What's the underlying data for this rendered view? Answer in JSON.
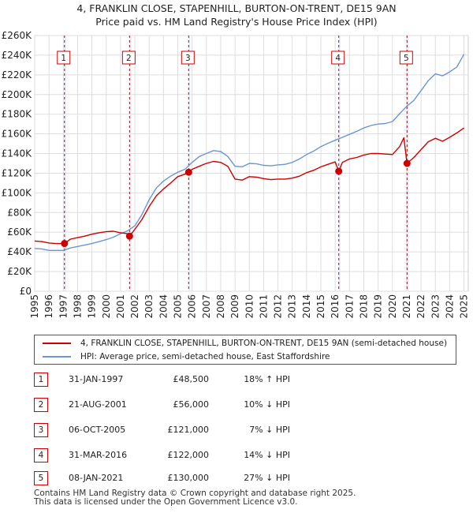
{
  "title_line1": "4, FRANKLIN CLOSE, STAPENHILL, BURTON-ON-TRENT, DE15 9AN",
  "title_line2": "Price paid vs. HM Land Registry's House Price Index (HPI)",
  "chart_data": {
    "type": "line",
    "xlim": [
      1995,
      2025.3
    ],
    "ylim": [
      0,
      260000
    ],
    "y_ticks": [
      0,
      20000,
      40000,
      60000,
      80000,
      100000,
      120000,
      140000,
      160000,
      180000,
      200000,
      220000,
      240000,
      260000
    ],
    "y_tick_labels": [
      "£0",
      "£20K",
      "£40K",
      "£60K",
      "£80K",
      "£100K",
      "£120K",
      "£140K",
      "£160K",
      "£180K",
      "£200K",
      "£220K",
      "£240K",
      "£260K"
    ],
    "x_ticks": [
      1995,
      1996,
      1997,
      1998,
      1999,
      2000,
      2001,
      2002,
      2003,
      2004,
      2005,
      2006,
      2007,
      2008,
      2009,
      2010,
      2011,
      2012,
      2013,
      2014,
      2015,
      2016,
      2017,
      2018,
      2019,
      2020,
      2021,
      2022,
      2023,
      2024,
      2025
    ],
    "x_tick_labels": [
      "1995",
      "1996",
      "1997",
      "1998",
      "1999",
      "2000",
      "2001",
      "2002",
      "2003",
      "2004",
      "2005",
      "2006",
      "2007",
      "2008",
      "2009",
      "2010",
      "2011",
      "2012",
      "2013",
      "2014",
      "2015",
      "2016",
      "2017",
      "2018",
      "2019",
      "2020",
      "2021",
      "2022",
      "2023",
      "2024",
      "2025"
    ],
    "grid": true,
    "series": [
      {
        "name": "4, FRANKLIN CLOSE, STAPENHILL, BURTON-ON-TRENT, DE15 9AN (semi-detached house)",
        "color": "#cc0000",
        "x": [
          1995.0,
          1995.5,
          1996.0,
          1996.5,
          1997.08,
          1997.5,
          1998.0,
          1998.5,
          1999.0,
          1999.5,
          2000.0,
          2000.5,
          2001.0,
          2001.5,
          2001.63,
          2002.0,
          2002.5,
          2003.0,
          2003.5,
          2004.0,
          2004.5,
          2005.0,
          2005.5,
          2005.76,
          2006.0,
          2006.5,
          2007.0,
          2007.5,
          2008.0,
          2008.5,
          2009.0,
          2009.5,
          2010.0,
          2010.5,
          2011.0,
          2011.5,
          2012.0,
          2012.5,
          2013.0,
          2013.5,
          2014.0,
          2014.5,
          2015.0,
          2015.5,
          2016.0,
          2016.25,
          2016.5,
          2017.0,
          2017.5,
          2018.0,
          2018.5,
          2019.0,
          2019.5,
          2020.0,
          2020.5,
          2020.8,
          2021.02,
          2021.5,
          2022.0,
          2022.5,
          2023.0,
          2023.5,
          2024.0,
          2024.5,
          2025.0
        ],
        "y": [
          51000,
          50500,
          49000,
          48500,
          48500,
          53000,
          54500,
          56000,
          58000,
          59500,
          60500,
          61000,
          59500,
          58500,
          56000,
          63000,
          73000,
          86000,
          97000,
          104000,
          110000,
          116500,
          119000,
          121000,
          124000,
          127000,
          130000,
          132000,
          131000,
          127000,
          114000,
          113000,
          116500,
          116000,
          114500,
          113500,
          114000,
          114000,
          115000,
          117000,
          120500,
          123000,
          126500,
          129000,
          131500,
          122000,
          131000,
          134500,
          136000,
          138500,
          140000,
          140000,
          139500,
          139000,
          147000,
          156000,
          130000,
          136000,
          144000,
          152000,
          155500,
          152500,
          156500,
          161000,
          166000
        ]
      },
      {
        "name": "HPI: Average price, semi-detached house, East Staffordshire",
        "color": "#6a96d4",
        "x": [
          1995.0,
          1995.5,
          1996.0,
          1996.5,
          1997.0,
          1997.5,
          1998.0,
          1998.5,
          1999.0,
          1999.5,
          2000.0,
          2000.5,
          2001.0,
          2001.5,
          2002.0,
          2002.5,
          2003.0,
          2003.5,
          2004.0,
          2004.5,
          2005.0,
          2005.5,
          2006.0,
          2006.5,
          2007.0,
          2007.5,
          2008.0,
          2008.5,
          2009.0,
          2009.5,
          2010.0,
          2010.5,
          2011.0,
          2011.5,
          2012.0,
          2012.5,
          2013.0,
          2013.5,
          2014.0,
          2014.5,
          2015.0,
          2015.5,
          2016.0,
          2016.5,
          2017.0,
          2017.5,
          2018.0,
          2018.5,
          2019.0,
          2019.5,
          2020.0,
          2020.5,
          2021.0,
          2021.5,
          2022.0,
          2022.5,
          2023.0,
          2023.5,
          2024.0,
          2024.5,
          2025.0
        ],
        "y": [
          43500,
          43000,
          41500,
          41500,
          41500,
          44000,
          45500,
          47000,
          48500,
          50500,
          52500,
          55000,
          58500,
          61500,
          66500,
          78000,
          93000,
          105000,
          112000,
          117000,
          121000,
          124000,
          131000,
          137000,
          140000,
          143000,
          142000,
          137000,
          127000,
          126500,
          130000,
          129500,
          128000,
          127500,
          128500,
          129000,
          131000,
          134500,
          139000,
          142500,
          147000,
          150500,
          153500,
          156500,
          159500,
          162500,
          166000,
          168500,
          170000,
          170500,
          172500,
          180500,
          188000,
          194000,
          204000,
          214000,
          221000,
          219000,
          223000,
          228000,
          241000
        ]
      }
    ],
    "sales": [
      {
        "id": "1",
        "x": 1997.08,
        "y": 48500
      },
      {
        "id": "2",
        "x": 2001.63,
        "y": 56000
      },
      {
        "id": "3",
        "x": 2005.76,
        "y": 121000
      },
      {
        "id": "4",
        "x": 2016.25,
        "y": 122000
      },
      {
        "id": "5",
        "x": 2021.02,
        "y": 130000
      }
    ]
  },
  "legend": {
    "property_label": "4, FRANKLIN CLOSE, STAPENHILL, BURTON-ON-TRENT, DE15 9AN (semi-detached house)",
    "hpi_label": "HPI: Average price, semi-detached house, East Staffordshire",
    "property_color": "#cc0000",
    "hpi_color": "#6a96d4"
  },
  "transactions": [
    {
      "num": "1",
      "date": "31-JAN-1997",
      "price": "£48,500",
      "hpi": "18% ↑ HPI"
    },
    {
      "num": "2",
      "date": "21-AUG-2001",
      "price": "£56,000",
      "hpi": "10% ↓ HPI"
    },
    {
      "num": "3",
      "date": "06-OCT-2005",
      "price": "£121,000",
      "hpi": "7% ↓ HPI"
    },
    {
      "num": "4",
      "date": "31-MAR-2016",
      "price": "£122,000",
      "hpi": "14% ↓ HPI"
    },
    {
      "num": "5",
      "date": "08-JAN-2021",
      "price": "£130,000",
      "hpi": "27% ↓ HPI"
    }
  ],
  "footer": {
    "line1": "Contains HM Land Registry data © Crown copyright and database right 2025.",
    "line2": "This data is licensed under the Open Government Licence v3.0."
  }
}
